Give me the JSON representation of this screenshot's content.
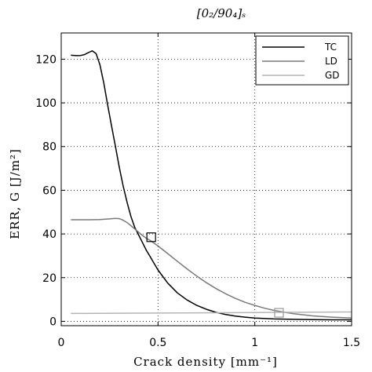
{
  "chart_data": {
    "type": "line",
    "title": "[0₂/90₄]ₛ",
    "xlabel": "Crack density [mm⁻¹]",
    "ylabel": "ERR, G [J/m²]",
    "xlim": [
      0,
      1.5
    ],
    "ylim": [
      -2,
      132
    ],
    "x_ticks": [
      0,
      0.5,
      1,
      1.5
    ],
    "x_tick_labels": [
      "0",
      "0.5",
      "1",
      "1.5"
    ],
    "y_ticks": [
      0,
      20,
      40,
      60,
      80,
      100,
      120
    ],
    "y_tick_labels": [
      "0",
      "20",
      "40",
      "60",
      "80",
      "100",
      "120"
    ],
    "grid": true,
    "legend_position": "top-right",
    "series": [
      {
        "name": "TC",
        "color": "#000000",
        "x": [
          0.05,
          0.08,
          0.1,
          0.12,
          0.14,
          0.16,
          0.18,
          0.2,
          0.22,
          0.24,
          0.26,
          0.28,
          0.3,
          0.32,
          0.34,
          0.36,
          0.38,
          0.4,
          0.42,
          0.44,
          0.46,
          0.48,
          0.5,
          0.55,
          0.6,
          0.65,
          0.7,
          0.75,
          0.8,
          0.85,
          0.9,
          0.95,
          1.0,
          1.1,
          1.2,
          1.3,
          1.4,
          1.5
        ],
        "y": [
          121.8,
          121.6,
          121.7,
          122.1,
          123.0,
          123.8,
          122.6,
          117.5,
          109,
          99,
          89.5,
          80,
          70.5,
          62,
          54.5,
          48,
          43,
          39.5,
          36,
          32.5,
          29.5,
          26.5,
          23.5,
          17.5,
          13,
          9.8,
          7.3,
          5.5,
          4.1,
          3.1,
          2.4,
          1.9,
          1.5,
          1.1,
          0.9,
          0.8,
          0.7,
          0.7
        ]
      },
      {
        "name": "LD",
        "color": "#7a7a7a",
        "x": [
          0.05,
          0.1,
          0.15,
          0.2,
          0.25,
          0.28,
          0.3,
          0.32,
          0.34,
          0.36,
          0.38,
          0.4,
          0.42,
          0.44,
          0.46,
          0.5,
          0.55,
          0.6,
          0.65,
          0.7,
          0.75,
          0.8,
          0.85,
          0.9,
          0.95,
          1.0,
          1.05,
          1.1,
          1.15,
          1.2,
          1.3,
          1.4,
          1.5
        ],
        "y": [
          46.5,
          46.5,
          46.5,
          46.6,
          46.9,
          47.1,
          47.0,
          46.3,
          45.2,
          43.8,
          42.3,
          40.8,
          39.3,
          38.0,
          37.0,
          34.5,
          31.0,
          27.5,
          24.0,
          20.7,
          17.7,
          15.0,
          12.6,
          10.5,
          8.7,
          7.3,
          6.0,
          5.0,
          4.2,
          3.5,
          2.5,
          1.9,
          1.5
        ]
      },
      {
        "name": "GD",
        "color": "#b4b4b4",
        "x": [
          0.05,
          0.5,
          1.0,
          1.12,
          1.3,
          1.5
        ],
        "y": [
          3.6,
          3.8,
          4.0,
          4.1,
          4.2,
          4.3
        ]
      }
    ],
    "markers": [
      {
        "shape": "square",
        "x": 0.465,
        "y": 38.5,
        "color": "#000000"
      },
      {
        "shape": "square",
        "x": 1.125,
        "y": 3.9,
        "color": "#999999"
      }
    ]
  }
}
